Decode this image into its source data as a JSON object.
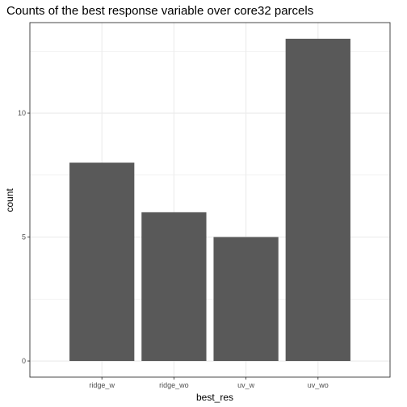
{
  "chart_data": {
    "type": "bar",
    "title": "Counts of the best response variable over core32 parcels",
    "xlabel": "best_res",
    "ylabel": "count",
    "categories": [
      "ridge_w",
      "ridge_wo",
      "uv_w",
      "uv_wo"
    ],
    "values": [
      8,
      6,
      5,
      13
    ],
    "ylim": [
      -0.65,
      13.65
    ],
    "yticks": [
      0,
      5,
      10
    ],
    "grid": true,
    "legend": "none",
    "bar_color": "#595959",
    "panel_border_color": "#333333",
    "grid_color": "#ebebeb"
  }
}
